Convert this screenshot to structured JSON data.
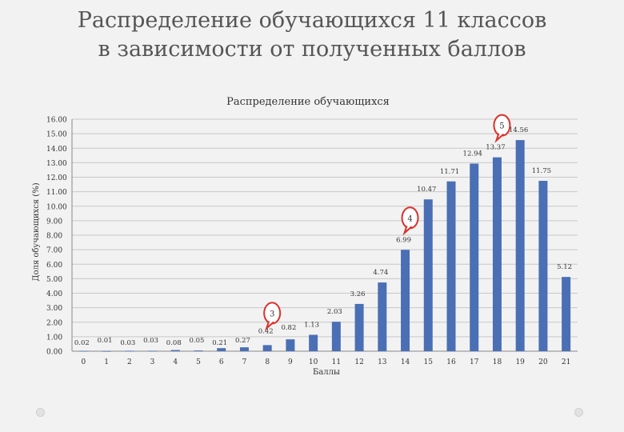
{
  "slide": {
    "title_line1": "Распределение обучающихся 11 классов",
    "title_line2": "в зависимости от полученных баллов"
  },
  "chart_data": {
    "type": "bar",
    "title": "Распределение обучающихся",
    "xlabel": "Баллы",
    "ylabel": "Доля обучающихся (%)",
    "ylim": [
      0,
      16
    ],
    "ytick_step": 1,
    "ytick_labels": [
      "0.00",
      "1.00",
      "2.00",
      "3.00",
      "4.00",
      "5.00",
      "6.00",
      "7.00",
      "8.00",
      "9.00",
      "10.00",
      "11.00",
      "12.00",
      "13.00",
      "14.00",
      "15.00",
      "16.00"
    ],
    "grid": true,
    "legend": "none",
    "categories": [
      "0",
      "1",
      "2",
      "3",
      "4",
      "5",
      "6",
      "7",
      "8",
      "9",
      "10",
      "11",
      "12",
      "13",
      "14",
      "15",
      "16",
      "17",
      "18",
      "19",
      "20",
      "21"
    ],
    "values": [
      0.02,
      0.01,
      0.03,
      0.03,
      0.08,
      0.05,
      0.21,
      0.27,
      0.42,
      0.82,
      1.13,
      2.03,
      3.26,
      4.74,
      6.99,
      10.47,
      11.71,
      12.94,
      13.37,
      14.56,
      11.75,
      5.12
    ],
    "data_labels": [
      "0.02",
      "0.01",
      "0.03",
      "0.03",
      "0.08",
      "0.05",
      "0.21",
      "0.27",
      "0.42",
      "0.82",
      "1.13",
      "2.03",
      "3.26",
      "4.74",
      "6.99",
      "10.47",
      "11.71",
      "12.94",
      "13.37",
      "14.56",
      "11.75",
      "5.12"
    ],
    "bar_color": "#4a6fb5",
    "annotations": [
      {
        "text": "3",
        "category": "8"
      },
      {
        "text": "4",
        "category": "14"
      },
      {
        "text": "5",
        "category": "18"
      }
    ],
    "annotation_color": "#d9312b"
  }
}
